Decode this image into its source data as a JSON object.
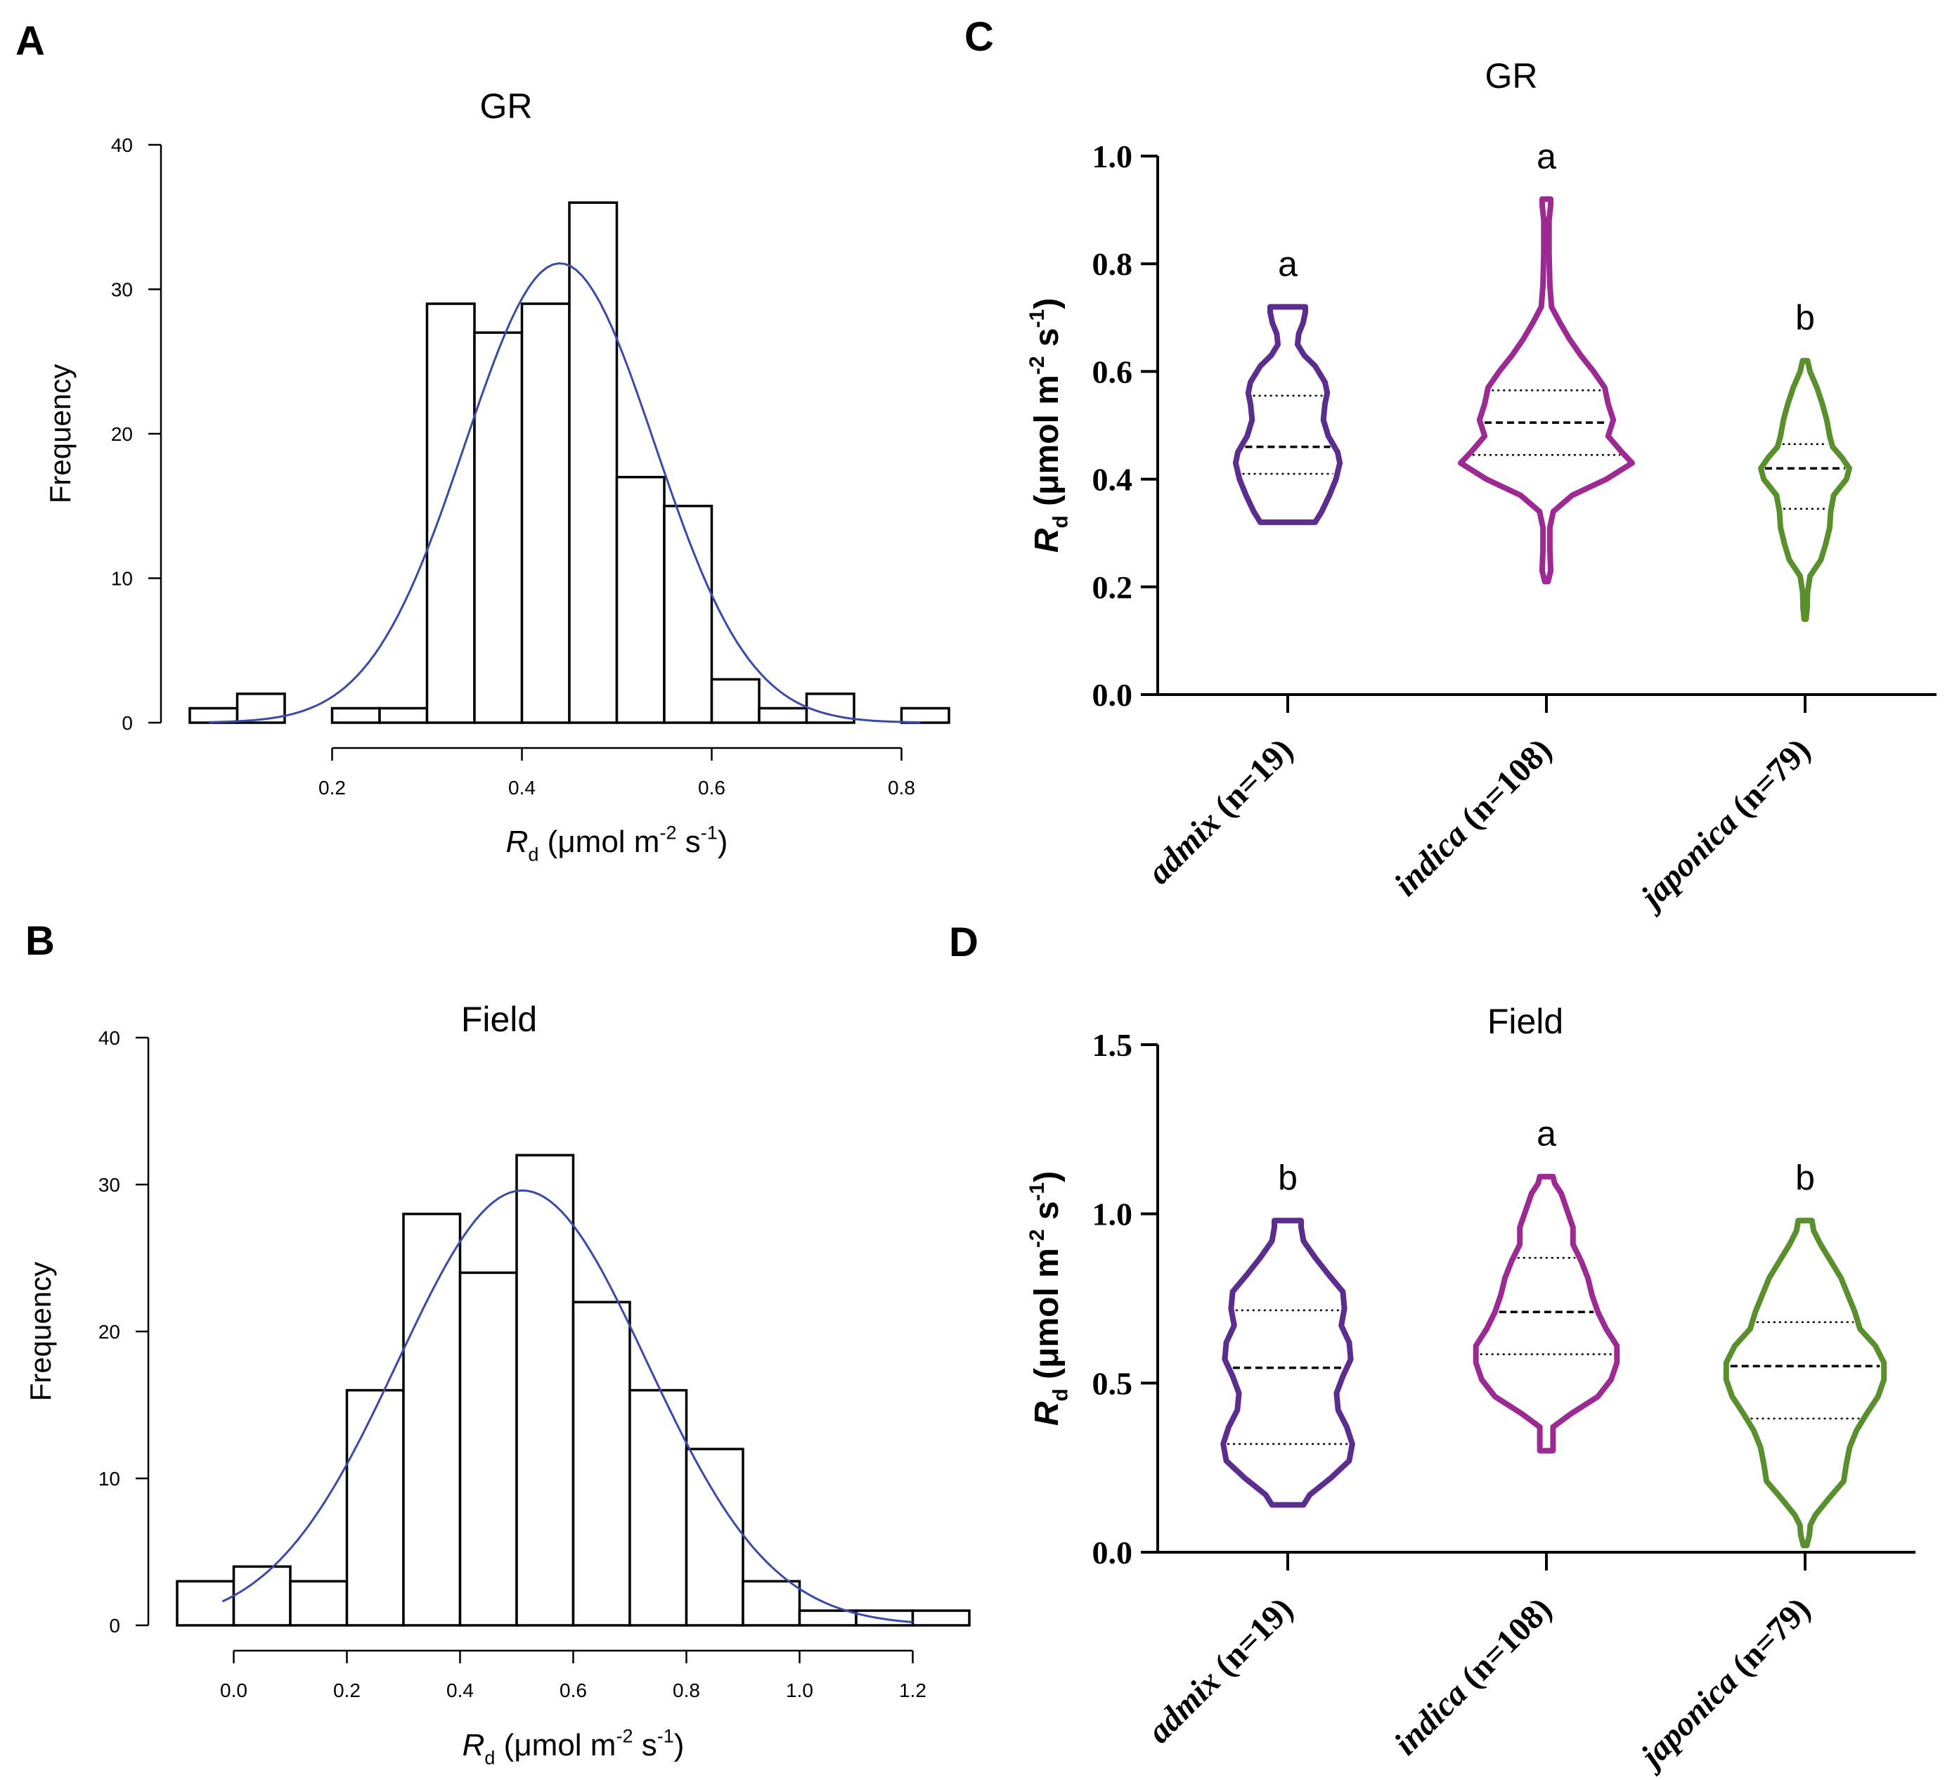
{
  "colors": {
    "axis": "#000000",
    "bar_fill": "#ffffff",
    "bar_stroke": "#000000",
    "normal_curve": "#3a4aa8",
    "admix": "#5b2d8e",
    "indica": "#9c2a92",
    "japonica": "#5a8f2e"
  },
  "chart_data": [
    {
      "panel": "A",
      "type": "bar",
      "subtype": "histogram",
      "title": "GR",
      "ylabel": "Frequency",
      "xlabel": {
        "italic": "R",
        "sub": "d",
        "unit": "(μmol m",
        "sup1": "-2",
        "mid": " s",
        "sup2": "-1",
        "end": ")"
      },
      "bin_edges": [
        0.05,
        0.1,
        0.15,
        0.2,
        0.25,
        0.3,
        0.35,
        0.4,
        0.45,
        0.5,
        0.55,
        0.6,
        0.65,
        0.7,
        0.75,
        0.8,
        0.85
      ],
      "values": [
        1,
        2,
        0,
        1,
        1,
        29,
        27,
        29,
        36,
        17,
        15,
        3,
        1,
        2,
        0,
        1
      ],
      "ylim": [
        0,
        40
      ],
      "yticks": [
        "0",
        "10",
        "20",
        "30",
        "40"
      ],
      "ytick_values": [
        0,
        10,
        20,
        30,
        40
      ],
      "xticks": [
        "0.2",
        "0.4",
        "0.6",
        "0.8"
      ],
      "xtick_values": [
        0.2,
        0.4,
        0.6,
        0.8
      ],
      "xaxis_range": [
        0.2,
        0.8
      ],
      "normal_fit": {
        "mean": 0.44,
        "sd": 0.1,
        "peak": 31.8,
        "x_start": 0.07,
        "x_end": 0.82
      }
    },
    {
      "panel": "B",
      "type": "bar",
      "subtype": "histogram",
      "title": "Field",
      "ylabel": "Frequency",
      "xlabel": {
        "italic": "R",
        "sub": "d",
        "unit": "(μmol m",
        "sup1": "-2",
        "mid": " s",
        "sup2": "-1",
        "end": ")"
      },
      "bin_edges": [
        -0.1,
        0.0,
        0.1,
        0.2,
        0.3,
        0.4,
        0.5,
        0.6,
        0.7,
        0.8,
        0.9,
        1.0,
        1.1,
        1.2,
        1.3
      ],
      "values": [
        3,
        4,
        3,
        16,
        28,
        24,
        32,
        22,
        16,
        12,
        3,
        1,
        1,
        1
      ],
      "ylim": [
        0,
        40
      ],
      "yticks": [
        "0",
        "10",
        "20",
        "30",
        "40"
      ],
      "ytick_values": [
        0,
        10,
        20,
        30,
        40
      ],
      "xticks": [
        "0.0",
        "0.2",
        "0.4",
        "0.6",
        "0.8",
        "1.0",
        "1.2"
      ],
      "xtick_values": [
        0.0,
        0.2,
        0.4,
        0.6,
        0.8,
        1.0,
        1.2
      ],
      "xaxis_range": [
        0.0,
        1.2
      ],
      "normal_fit": {
        "mean": 0.51,
        "sd": 0.22,
        "peak": 29.6,
        "x_start": -0.02,
        "x_end": 1.2
      }
    },
    {
      "panel": "C",
      "type": "violin",
      "title": "GR",
      "ylabel": {
        "italic": "R",
        "sub": "d",
        "unit": "(μmol m",
        "sup1": "-2",
        "mid": " s",
        "sup2": "-1",
        "end": ")"
      },
      "ylim": [
        0,
        1.0
      ],
      "yticks": [
        "0.0",
        "0.2",
        "0.4",
        "0.6",
        "0.8",
        "1.0"
      ],
      "ytick_values": [
        0,
        0.2,
        0.4,
        0.6,
        0.8,
        1.0
      ],
      "groups": [
        {
          "name": "admix",
          "n_label": " (n=19)",
          "color_key": "admix",
          "letter": "a",
          "min": 0.32,
          "max": 0.72,
          "q1": 0.41,
          "median": 0.46,
          "q3": 0.555,
          "profile": [
            [
              0.32,
              0.5
            ],
            [
              0.34,
              0.62
            ],
            [
              0.37,
              0.76
            ],
            [
              0.4,
              0.88
            ],
            [
              0.43,
              0.95
            ],
            [
              0.45,
              0.91
            ],
            [
              0.48,
              0.74
            ],
            [
              0.51,
              0.65
            ],
            [
              0.54,
              0.68
            ],
            [
              0.56,
              0.72
            ],
            [
              0.58,
              0.68
            ],
            [
              0.61,
              0.5
            ],
            [
              0.63,
              0.3
            ],
            [
              0.65,
              0.18
            ],
            [
              0.67,
              0.2
            ],
            [
              0.69,
              0.28
            ],
            [
              0.71,
              0.32
            ],
            [
              0.72,
              0.32
            ]
          ]
        },
        {
          "name": "indica",
          "n_label": " (n=108)",
          "color_key": "indica",
          "letter": "a",
          "min": 0.21,
          "max": 0.92,
          "q1": 0.445,
          "median": 0.505,
          "q3": 0.565,
          "profile": [
            [
              0.21,
              0.02
            ],
            [
              0.23,
              0.05
            ],
            [
              0.27,
              0.04
            ],
            [
              0.31,
              0.04
            ],
            [
              0.34,
              0.08
            ],
            [
              0.37,
              0.3
            ],
            [
              0.4,
              0.7
            ],
            [
              0.43,
              1.0
            ],
            [
              0.45,
              0.88
            ],
            [
              0.48,
              0.72
            ],
            [
              0.51,
              0.78
            ],
            [
              0.54,
              0.72
            ],
            [
              0.57,
              0.68
            ],
            [
              0.6,
              0.55
            ],
            [
              0.63,
              0.4
            ],
            [
              0.66,
              0.27
            ],
            [
              0.69,
              0.16
            ],
            [
              0.72,
              0.06
            ],
            [
              0.76,
              0.04
            ],
            [
              0.82,
              0.03
            ],
            [
              0.88,
              0.03
            ],
            [
              0.91,
              0.05
            ],
            [
              0.92,
              0.05
            ]
          ]
        },
        {
          "name": "japonica",
          "n_label": " (n=79)",
          "color_key": "japonica",
          "letter": "b",
          "min": 0.14,
          "max": 0.62,
          "q1": 0.345,
          "median": 0.42,
          "q3": 0.465,
          "profile": [
            [
              0.14,
              0.02
            ],
            [
              0.16,
              0.04
            ],
            [
              0.19,
              0.05
            ],
            [
              0.22,
              0.1
            ],
            [
              0.25,
              0.32
            ],
            [
              0.28,
              0.42
            ],
            [
              0.31,
              0.5
            ],
            [
              0.34,
              0.52
            ],
            [
              0.37,
              0.58
            ],
            [
              0.4,
              0.84
            ],
            [
              0.42,
              0.9
            ],
            [
              0.44,
              0.75
            ],
            [
              0.46,
              0.56
            ],
            [
              0.48,
              0.5
            ],
            [
              0.51,
              0.44
            ],
            [
              0.54,
              0.35
            ],
            [
              0.57,
              0.24
            ],
            [
              0.6,
              0.1
            ],
            [
              0.62,
              0.05
            ]
          ]
        }
      ]
    },
    {
      "panel": "D",
      "type": "violin",
      "title": "Field",
      "ylabel": {
        "italic": "R",
        "sub": "d",
        "unit": "(μmol m",
        "sup1": "-2",
        "mid": " s",
        "sup2": "-1",
        "end": ")"
      },
      "ylim": [
        0,
        1.5
      ],
      "yticks": [
        "0.0",
        "0.5",
        "1.0",
        "1.5"
      ],
      "ytick_values": [
        0,
        0.5,
        1.0,
        1.5
      ],
      "groups": [
        {
          "name": "admix",
          "n_label": " (n=19)",
          "color_key": "admix",
          "letter": "b",
          "min": 0.14,
          "max": 0.98,
          "q1": 0.32,
          "median": 0.545,
          "q3": 0.715,
          "profile": [
            [
              0.14,
              0.2
            ],
            [
              0.17,
              0.28
            ],
            [
              0.22,
              0.55
            ],
            [
              0.27,
              0.78
            ],
            [
              0.32,
              0.82
            ],
            [
              0.37,
              0.75
            ],
            [
              0.42,
              0.64
            ],
            [
              0.47,
              0.62
            ],
            [
              0.52,
              0.7
            ],
            [
              0.57,
              0.8
            ],
            [
              0.62,
              0.78
            ],
            [
              0.67,
              0.68
            ],
            [
              0.72,
              0.72
            ],
            [
              0.77,
              0.7
            ],
            [
              0.82,
              0.52
            ],
            [
              0.87,
              0.35
            ],
            [
              0.92,
              0.2
            ],
            [
              0.96,
              0.17
            ],
            [
              0.98,
              0.17
            ]
          ]
        },
        {
          "name": "indica",
          "n_label": " (n=108)",
          "color_key": "indica",
          "letter": "a",
          "min": 0.3,
          "max": 1.11,
          "q1": 0.585,
          "median": 0.71,
          "q3": 0.87,
          "profile": [
            [
              0.3,
              0.08
            ],
            [
              0.33,
              0.08
            ],
            [
              0.37,
              0.08
            ],
            [
              0.41,
              0.3
            ],
            [
              0.46,
              0.62
            ],
            [
              0.51,
              0.78
            ],
            [
              0.56,
              0.85
            ],
            [
              0.61,
              0.85
            ],
            [
              0.66,
              0.72
            ],
            [
              0.71,
              0.62
            ],
            [
              0.76,
              0.55
            ],
            [
              0.81,
              0.5
            ],
            [
              0.86,
              0.42
            ],
            [
              0.91,
              0.32
            ],
            [
              0.96,
              0.32
            ],
            [
              1.01,
              0.25
            ],
            [
              1.06,
              0.18
            ],
            [
              1.09,
              0.1
            ],
            [
              1.11,
              0.08
            ]
          ]
        },
        {
          "name": "japonica",
          "n_label": " (n=79)",
          "color_key": "japonica",
          "letter": "b",
          "min": 0.02,
          "max": 0.98,
          "q1": 0.395,
          "median": 0.55,
          "q3": 0.68,
          "profile": [
            [
              0.02,
              0.02
            ],
            [
              0.05,
              0.05
            ],
            [
              0.08,
              0.06
            ],
            [
              0.11,
              0.12
            ],
            [
              0.16,
              0.28
            ],
            [
              0.21,
              0.45
            ],
            [
              0.26,
              0.48
            ],
            [
              0.31,
              0.52
            ],
            [
              0.36,
              0.6
            ],
            [
              0.41,
              0.72
            ],
            [
              0.46,
              0.85
            ],
            [
              0.51,
              0.92
            ],
            [
              0.56,
              0.92
            ],
            [
              0.61,
              0.82
            ],
            [
              0.66,
              0.64
            ],
            [
              0.71,
              0.58
            ],
            [
              0.76,
              0.5
            ],
            [
              0.81,
              0.42
            ],
            [
              0.86,
              0.3
            ],
            [
              0.91,
              0.18
            ],
            [
              0.95,
              0.1
            ],
            [
              0.98,
              0.08
            ]
          ]
        }
      ]
    }
  ],
  "panel_letters": [
    "A",
    "B",
    "C",
    "D"
  ]
}
